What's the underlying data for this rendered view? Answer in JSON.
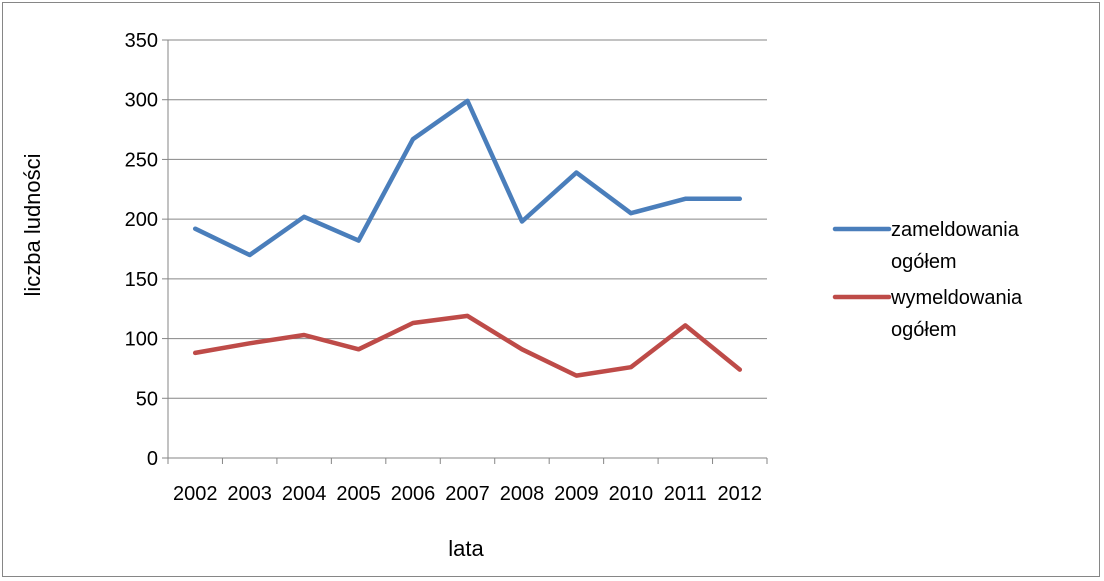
{
  "chart_data": {
    "type": "line",
    "title": "",
    "xlabel": "lata",
    "ylabel": "liczba ludności",
    "ylim": [
      0,
      350
    ],
    "y_ticks": [
      "0",
      "50",
      "100",
      "150",
      "200",
      "250",
      "300",
      "350"
    ],
    "grid": "horizontal",
    "legend_position": "right",
    "categories": [
      "2002",
      "2003",
      "2004",
      "2005",
      "2006",
      "2007",
      "2008",
      "2009",
      "2010",
      "2011",
      "2012"
    ],
    "series": [
      {
        "name_lines": [
          "zameldowania",
          "ogółem"
        ],
        "color": "#4a7ebb",
        "values": [
          192,
          170,
          202,
          182,
          267,
          299,
          198,
          239,
          205,
          217,
          217
        ]
      },
      {
        "name_lines": [
          "wymeldowania",
          "ogółem"
        ],
        "color": "#be4b48",
        "values": [
          88,
          96,
          103,
          91,
          113,
          119,
          91,
          69,
          76,
          111,
          74
        ]
      }
    ]
  }
}
